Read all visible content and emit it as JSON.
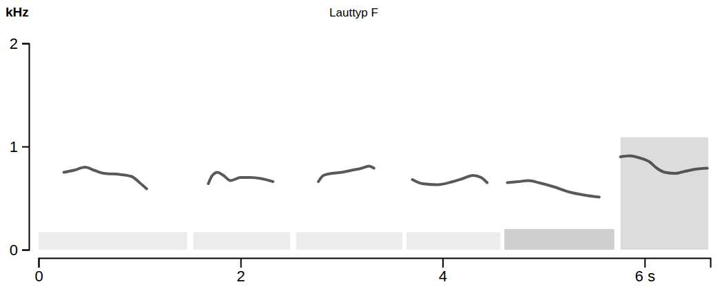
{
  "chart_data": {
    "type": "line",
    "title": "Lauttyp F",
    "y_label": "kHz",
    "xlim": [
      0,
      6.65
    ],
    "xticks": [
      0,
      2,
      4,
      {
        "value": 6,
        "label": "6 s"
      }
    ],
    "ylim": [
      0,
      2
    ],
    "yticks": [
      0,
      1,
      2
    ],
    "grid": false,
    "color": "#3c3c3c",
    "panels": [
      {
        "x": [
          0,
          1.47
        ],
        "noise": 0.17,
        "color": "#ececec"
      },
      {
        "x": [
          1.53,
          2.49
        ],
        "noise": 0.17,
        "color": "#ececec"
      },
      {
        "x": [
          2.55,
          3.6
        ],
        "noise": 0.17,
        "color": "#ececec"
      },
      {
        "x": [
          3.64,
          4.57
        ],
        "noise": 0.17,
        "color": "#ececec"
      },
      {
        "x": [
          4.61,
          5.7
        ],
        "noise": 0.2,
        "color": "#cfcfcf"
      },
      {
        "x": [
          5.76,
          6.63
        ],
        "noise": 1.09,
        "color": "#dcdcdc"
      }
    ],
    "series": [
      {
        "x": [
          0.25,
          0.35,
          0.46,
          0.55,
          0.65,
          0.8,
          0.92,
          1.0,
          1.07
        ],
        "values": [
          0.75,
          0.77,
          0.8,
          0.77,
          0.74,
          0.73,
          0.71,
          0.65,
          0.59
        ]
      },
      {
        "x": [
          1.68,
          1.72,
          1.77,
          1.83,
          1.9,
          2.0,
          2.1,
          2.2,
          2.32
        ],
        "values": [
          0.64,
          0.72,
          0.75,
          0.72,
          0.67,
          0.7,
          0.7,
          0.69,
          0.66
        ]
      },
      {
        "x": [
          2.77,
          2.82,
          2.9,
          3.0,
          3.1,
          3.2,
          3.27,
          3.32
        ],
        "values": [
          0.66,
          0.72,
          0.74,
          0.75,
          0.77,
          0.79,
          0.81,
          0.79
        ]
      },
      {
        "x": [
          3.7,
          3.8,
          3.95,
          4.1,
          4.2,
          4.3,
          4.38,
          4.44
        ],
        "values": [
          0.68,
          0.64,
          0.63,
          0.66,
          0.69,
          0.72,
          0.7,
          0.65
        ]
      },
      {
        "x": [
          4.64,
          4.75,
          4.85,
          4.95,
          5.1,
          5.25,
          5.4,
          5.55
        ],
        "values": [
          0.65,
          0.66,
          0.67,
          0.65,
          0.61,
          0.56,
          0.53,
          0.51
        ]
      },
      {
        "x": [
          5.76,
          5.85,
          5.95,
          6.05,
          6.12,
          6.2,
          6.3,
          6.4,
          6.5,
          6.62
        ],
        "values": [
          0.9,
          0.91,
          0.89,
          0.85,
          0.79,
          0.75,
          0.74,
          0.76,
          0.78,
          0.79
        ]
      }
    ]
  }
}
